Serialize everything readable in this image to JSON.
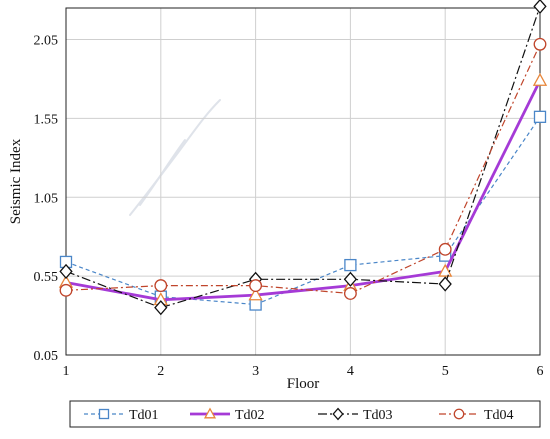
{
  "chart_data": {
    "type": "line",
    "title": "",
    "xlabel": "Floor",
    "ylabel": "Seismic Index",
    "x": [
      1,
      2,
      3,
      4,
      5,
      6
    ],
    "xticks": [
      "1",
      "2",
      "3",
      "4",
      "5",
      "6"
    ],
    "yticks": [
      "0.05",
      "0.55",
      "1.05",
      "1.55",
      "2.05"
    ],
    "ylim": [
      0.05,
      2.25
    ],
    "grid": true,
    "legend_position": "bottom",
    "series": [
      {
        "name": "Td01",
        "values": [
          0.64,
          0.42,
          0.37,
          0.62,
          0.68,
          1.56
        ],
        "color": "#4a86c8",
        "marker": "square",
        "dash": "4,3",
        "width": 1.2
      },
      {
        "name": "Td02",
        "values": [
          0.51,
          0.4,
          0.43,
          0.49,
          0.58,
          1.79
        ],
        "color": "#a53ad6",
        "marker": "triangle",
        "dash": "",
        "width": 2.8
      },
      {
        "name": "Td03",
        "values": [
          0.58,
          0.35,
          0.53,
          0.53,
          0.5,
          2.26
        ],
        "color": "#111111",
        "marker": "diamond",
        "dash": "9,3,2,3",
        "width": 1.2
      },
      {
        "name": "Td04",
        "values": [
          0.46,
          0.49,
          0.49,
          0.44,
          0.72,
          2.02
        ],
        "color": "#c0452b",
        "marker": "circle",
        "dash": "7,3,2,3",
        "width": 1.2
      }
    ]
  }
}
